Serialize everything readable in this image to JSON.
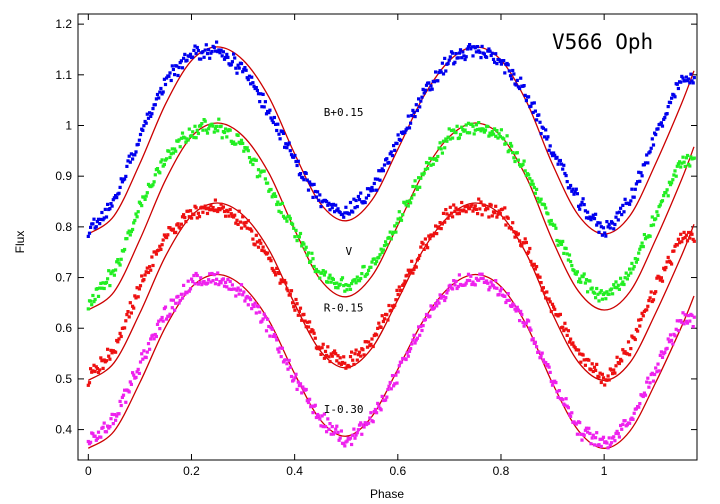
{
  "chart_data": {
    "type": "scatter",
    "title": "V566 Oph",
    "xlabel": "Phase",
    "ylabel": "Flux",
    "xlim": [
      -0.02,
      1.18
    ],
    "ylim": [
      0.34,
      1.22
    ],
    "xticks": [
      0,
      0.2,
      0.4,
      0.6,
      0.8,
      1
    ],
    "xtick_labels": [
      "0",
      "0.2",
      "0.4",
      "0.6",
      "0.8",
      "1"
    ],
    "yticks": [
      0.4,
      0.5,
      0.6,
      0.7,
      0.8,
      0.9,
      1.0,
      1.1,
      1.2
    ],
    "ytick_labels": [
      "0.4",
      "0.5",
      "0.6",
      "0.7",
      "0.8",
      "0.9",
      "1",
      "1.1",
      "1.2"
    ],
    "grid": false,
    "legend": "none",
    "model_color": "#cc0000",
    "series": [
      {
        "name": "B+0.15",
        "color": "#0000ee",
        "label_pos": [
          0.495,
          1.019
        ],
        "points": [
          [
            0.0,
            0.79
          ],
          [
            0.05,
            0.85
          ],
          [
            0.1,
            0.98
          ],
          [
            0.15,
            1.09
          ],
          [
            0.2,
            1.14
          ],
          [
            0.25,
            1.15
          ],
          [
            0.3,
            1.11
          ],
          [
            0.35,
            1.03
          ],
          [
            0.4,
            0.93
          ],
          [
            0.45,
            0.85
          ],
          [
            0.5,
            0.83
          ],
          [
            0.55,
            0.87
          ],
          [
            0.6,
            0.97
          ],
          [
            0.65,
            1.06
          ],
          [
            0.7,
            1.13
          ],
          [
            0.75,
            1.15
          ],
          [
            0.8,
            1.13
          ],
          [
            0.85,
            1.06
          ],
          [
            0.9,
            0.95
          ],
          [
            0.95,
            0.85
          ],
          [
            1.0,
            0.79
          ],
          [
            1.05,
            0.85
          ],
          [
            1.1,
            0.98
          ],
          [
            1.15,
            1.09
          ]
        ],
        "model": [
          [
            0.0,
            0.786
          ],
          [
            0.05,
            0.822
          ],
          [
            0.1,
            0.925
          ],
          [
            0.15,
            1.043
          ],
          [
            0.2,
            1.128
          ],
          [
            0.25,
            1.155
          ],
          [
            0.3,
            1.129
          ],
          [
            0.35,
            1.056
          ],
          [
            0.4,
            0.944
          ],
          [
            0.45,
            0.846
          ],
          [
            0.5,
            0.812
          ],
          [
            0.55,
            0.853
          ],
          [
            0.6,
            0.953
          ],
          [
            0.65,
            1.057
          ],
          [
            0.7,
            1.128
          ],
          [
            0.75,
            1.155
          ],
          [
            0.8,
            1.129
          ],
          [
            0.85,
            1.046
          ],
          [
            0.9,
            0.923
          ],
          [
            0.95,
            0.823
          ],
          [
            1.0,
            0.786
          ],
          [
            1.05,
            0.822
          ],
          [
            1.1,
            0.925
          ],
          [
            1.15,
            1.043
          ]
        ]
      },
      {
        "name": "V",
        "color": "#22ee22",
        "label_pos": [
          0.505,
          0.744
        ],
        "points": [
          [
            0.0,
            0.65
          ],
          [
            0.05,
            0.71
          ],
          [
            0.1,
            0.84
          ],
          [
            0.15,
            0.94
          ],
          [
            0.2,
            0.99
          ],
          [
            0.25,
            1.0
          ],
          [
            0.3,
            0.96
          ],
          [
            0.35,
            0.88
          ],
          [
            0.4,
            0.79
          ],
          [
            0.45,
            0.71
          ],
          [
            0.5,
            0.68
          ],
          [
            0.55,
            0.72
          ],
          [
            0.6,
            0.81
          ],
          [
            0.65,
            0.91
          ],
          [
            0.7,
            0.98
          ],
          [
            0.75,
            1.0
          ],
          [
            0.8,
            0.98
          ],
          [
            0.85,
            0.91
          ],
          [
            0.9,
            0.8
          ],
          [
            0.95,
            0.7
          ],
          [
            1.0,
            0.66
          ],
          [
            1.05,
            0.71
          ],
          [
            1.1,
            0.82
          ],
          [
            1.15,
            0.93
          ]
        ],
        "model": [
          [
            0.0,
            0.636
          ],
          [
            0.05,
            0.672
          ],
          [
            0.1,
            0.775
          ],
          [
            0.15,
            0.893
          ],
          [
            0.2,
            0.978
          ],
          [
            0.25,
            1.005
          ],
          [
            0.3,
            0.979
          ],
          [
            0.35,
            0.906
          ],
          [
            0.4,
            0.794
          ],
          [
            0.45,
            0.696
          ],
          [
            0.5,
            0.662
          ],
          [
            0.55,
            0.703
          ],
          [
            0.6,
            0.803
          ],
          [
            0.65,
            0.907
          ],
          [
            0.7,
            0.978
          ],
          [
            0.75,
            1.005
          ],
          [
            0.8,
            0.979
          ],
          [
            0.85,
            0.896
          ],
          [
            0.9,
            0.773
          ],
          [
            0.95,
            0.673
          ],
          [
            1.0,
            0.636
          ],
          [
            1.05,
            0.672
          ],
          [
            1.1,
            0.775
          ],
          [
            1.15,
            0.893
          ]
        ]
      },
      {
        "name": "R-0.15",
        "color": "#ee1111",
        "label_pos": [
          0.495,
          0.633
        ],
        "points": [
          [
            0.0,
            0.5
          ],
          [
            0.05,
            0.56
          ],
          [
            0.1,
            0.68
          ],
          [
            0.15,
            0.78
          ],
          [
            0.2,
            0.83
          ],
          [
            0.25,
            0.84
          ],
          [
            0.3,
            0.81
          ],
          [
            0.35,
            0.74
          ],
          [
            0.4,
            0.65
          ],
          [
            0.45,
            0.56
          ],
          [
            0.5,
            0.53
          ],
          [
            0.55,
            0.57
          ],
          [
            0.6,
            0.67
          ],
          [
            0.65,
            0.76
          ],
          [
            0.7,
            0.83
          ],
          [
            0.75,
            0.84
          ],
          [
            0.8,
            0.83
          ],
          [
            0.85,
            0.76
          ],
          [
            0.9,
            0.64
          ],
          [
            0.95,
            0.55
          ],
          [
            1.0,
            0.5
          ],
          [
            1.05,
            0.56
          ],
          [
            1.1,
            0.68
          ],
          [
            1.15,
            0.78
          ]
        ],
        "model": [
          [
            0.0,
            0.497
          ],
          [
            0.05,
            0.532
          ],
          [
            0.1,
            0.63
          ],
          [
            0.15,
            0.743
          ],
          [
            0.2,
            0.822
          ],
          [
            0.25,
            0.847
          ],
          [
            0.3,
            0.823
          ],
          [
            0.35,
            0.755
          ],
          [
            0.4,
            0.648
          ],
          [
            0.45,
            0.555
          ],
          [
            0.5,
            0.522
          ],
          [
            0.55,
            0.561
          ],
          [
            0.6,
            0.656
          ],
          [
            0.65,
            0.756
          ],
          [
            0.7,
            0.822
          ],
          [
            0.75,
            0.847
          ],
          [
            0.8,
            0.823
          ],
          [
            0.85,
            0.745
          ],
          [
            0.9,
            0.628
          ],
          [
            0.95,
            0.533
          ],
          [
            1.0,
            0.497
          ],
          [
            1.05,
            0.532
          ],
          [
            1.1,
            0.63
          ],
          [
            1.15,
            0.743
          ]
        ]
      },
      {
        "name": "I-0.30",
        "color": "#ee22ee",
        "label_pos": [
          0.495,
          0.433
        ],
        "points": [
          [
            0.0,
            0.37
          ],
          [
            0.05,
            0.42
          ],
          [
            0.1,
            0.53
          ],
          [
            0.15,
            0.63
          ],
          [
            0.2,
            0.69
          ],
          [
            0.25,
            0.7
          ],
          [
            0.3,
            0.67
          ],
          [
            0.35,
            0.6
          ],
          [
            0.4,
            0.5
          ],
          [
            0.45,
            0.42
          ],
          [
            0.5,
            0.38
          ],
          [
            0.55,
            0.42
          ],
          [
            0.6,
            0.51
          ],
          [
            0.65,
            0.61
          ],
          [
            0.7,
            0.68
          ],
          [
            0.75,
            0.7
          ],
          [
            0.8,
            0.68
          ],
          [
            0.85,
            0.61
          ],
          [
            0.9,
            0.5
          ],
          [
            0.95,
            0.4
          ],
          [
            1.0,
            0.37
          ],
          [
            1.05,
            0.42
          ],
          [
            1.1,
            0.52
          ],
          [
            1.15,
            0.62
          ]
        ],
        "model": [
          [
            0.0,
            0.363
          ],
          [
            0.05,
            0.397
          ],
          [
            0.1,
            0.493
          ],
          [
            0.15,
            0.603
          ],
          [
            0.2,
            0.681
          ],
          [
            0.25,
            0.706
          ],
          [
            0.3,
            0.682
          ],
          [
            0.35,
            0.615
          ],
          [
            0.4,
            0.51
          ],
          [
            0.45,
            0.419
          ],
          [
            0.5,
            0.387
          ],
          [
            0.55,
            0.426
          ],
          [
            0.6,
            0.519
          ],
          [
            0.65,
            0.616
          ],
          [
            0.7,
            0.681
          ],
          [
            0.75,
            0.706
          ],
          [
            0.8,
            0.682
          ],
          [
            0.85,
            0.605
          ],
          [
            0.9,
            0.491
          ],
          [
            0.95,
            0.398
          ],
          [
            1.0,
            0.363
          ],
          [
            1.05,
            0.397
          ],
          [
            1.1,
            0.493
          ],
          [
            1.15,
            0.603
          ]
        ]
      }
    ]
  }
}
